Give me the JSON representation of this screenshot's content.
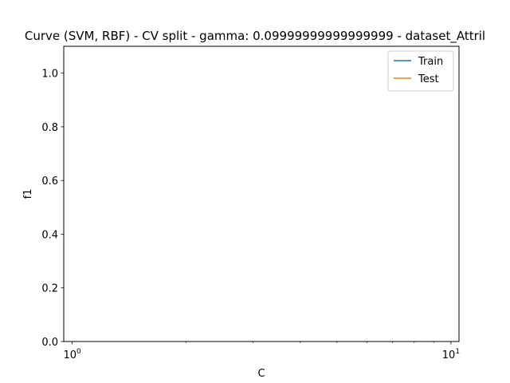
{
  "chart_data": {
    "type": "line",
    "title": "Curve (SVM, RBF) - CV split - gamma: 0.09999999999999999 - dataset_Attril",
    "xlabel": "C",
    "ylabel": "f1",
    "xscale": "log",
    "xlim": [
      0.95,
      10.5
    ],
    "ylim": [
      0.0,
      1.1
    ],
    "xticks_major": [
      {
        "value": 1,
        "base": "10",
        "exp": "0"
      },
      {
        "value": 10,
        "base": "10",
        "exp": "1"
      }
    ],
    "xticks_minor": [
      2,
      3,
      4,
      5,
      6,
      7,
      8,
      9
    ],
    "yticks": [
      {
        "value": 0.0,
        "label": "0.0"
      },
      {
        "value": 0.2,
        "label": "0.2"
      },
      {
        "value": 0.4,
        "label": "0.4"
      },
      {
        "value": 0.6,
        "label": "0.6"
      },
      {
        "value": 0.8,
        "label": "0.8"
      },
      {
        "value": 1.0,
        "label": "1.0"
      }
    ],
    "grid": false,
    "legend_position": "top-right",
    "series": [
      {
        "name": "Train",
        "color": "#1f77b4",
        "x": [],
        "y": []
      },
      {
        "name": "Test",
        "color": "#ff7f0e",
        "x": [],
        "y": []
      }
    ]
  }
}
